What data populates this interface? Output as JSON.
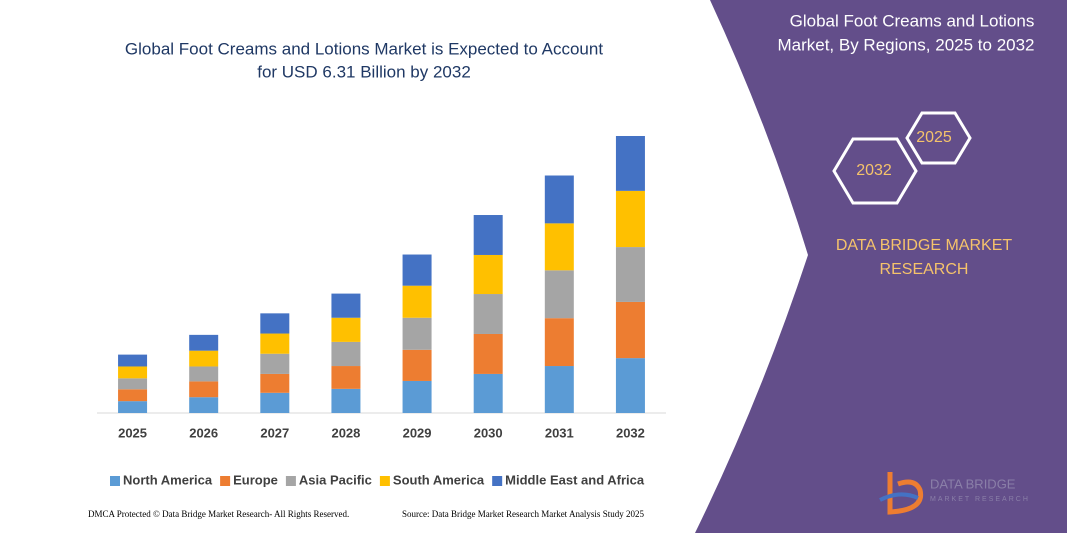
{
  "chart_data": {
    "type": "stacked-bar",
    "title": [
      "Global Foot Creams and Lotions Market is Expected to Account",
      "for USD 6.31 Billion by 2032"
    ],
    "categories": [
      "2025",
      "2026",
      "2027",
      "2028",
      "2029",
      "2030",
      "2031",
      "2032"
    ],
    "series": [
      {
        "name": "North America",
        "color": "#5b9bd5",
        "values": [
          0.27,
          0.36,
          0.46,
          0.55,
          0.73,
          0.89,
          1.07,
          1.25
        ]
      },
      {
        "name": "Europe",
        "color": "#ed7d31",
        "values": [
          0.27,
          0.36,
          0.43,
          0.52,
          0.71,
          0.91,
          1.09,
          1.28
        ]
      },
      {
        "name": "Asia Pacific",
        "color": "#a5a5a5",
        "values": [
          0.25,
          0.34,
          0.46,
          0.55,
          0.73,
          0.91,
          1.09,
          1.25
        ]
      },
      {
        "name": "South America",
        "color": "#ffc000",
        "values": [
          0.27,
          0.36,
          0.46,
          0.55,
          0.73,
          0.89,
          1.07,
          1.28
        ]
      },
      {
        "name": "Middle East and Africa",
        "color": "#4472c4",
        "values": [
          0.27,
          0.36,
          0.46,
          0.55,
          0.71,
          0.91,
          1.09,
          1.25
        ]
      }
    ]
  },
  "panel": {
    "title": [
      "Global Foot Creams and Lotions",
      "Market, By Regions, 2025 to 2032"
    ],
    "hex_labels": [
      "2025",
      "2032"
    ],
    "brand": [
      "DATA BRIDGE MARKET",
      "RESEARCH"
    ],
    "logo": [
      "DATA BRIDGE",
      "MARKET RESEARCH"
    ]
  },
  "footer": {
    "left": "DMCA Protected © Data Bridge Market Research- All Rights Reserved.",
    "right": "Source: Data Bridge Market Research Market Analysis Study 2025"
  }
}
